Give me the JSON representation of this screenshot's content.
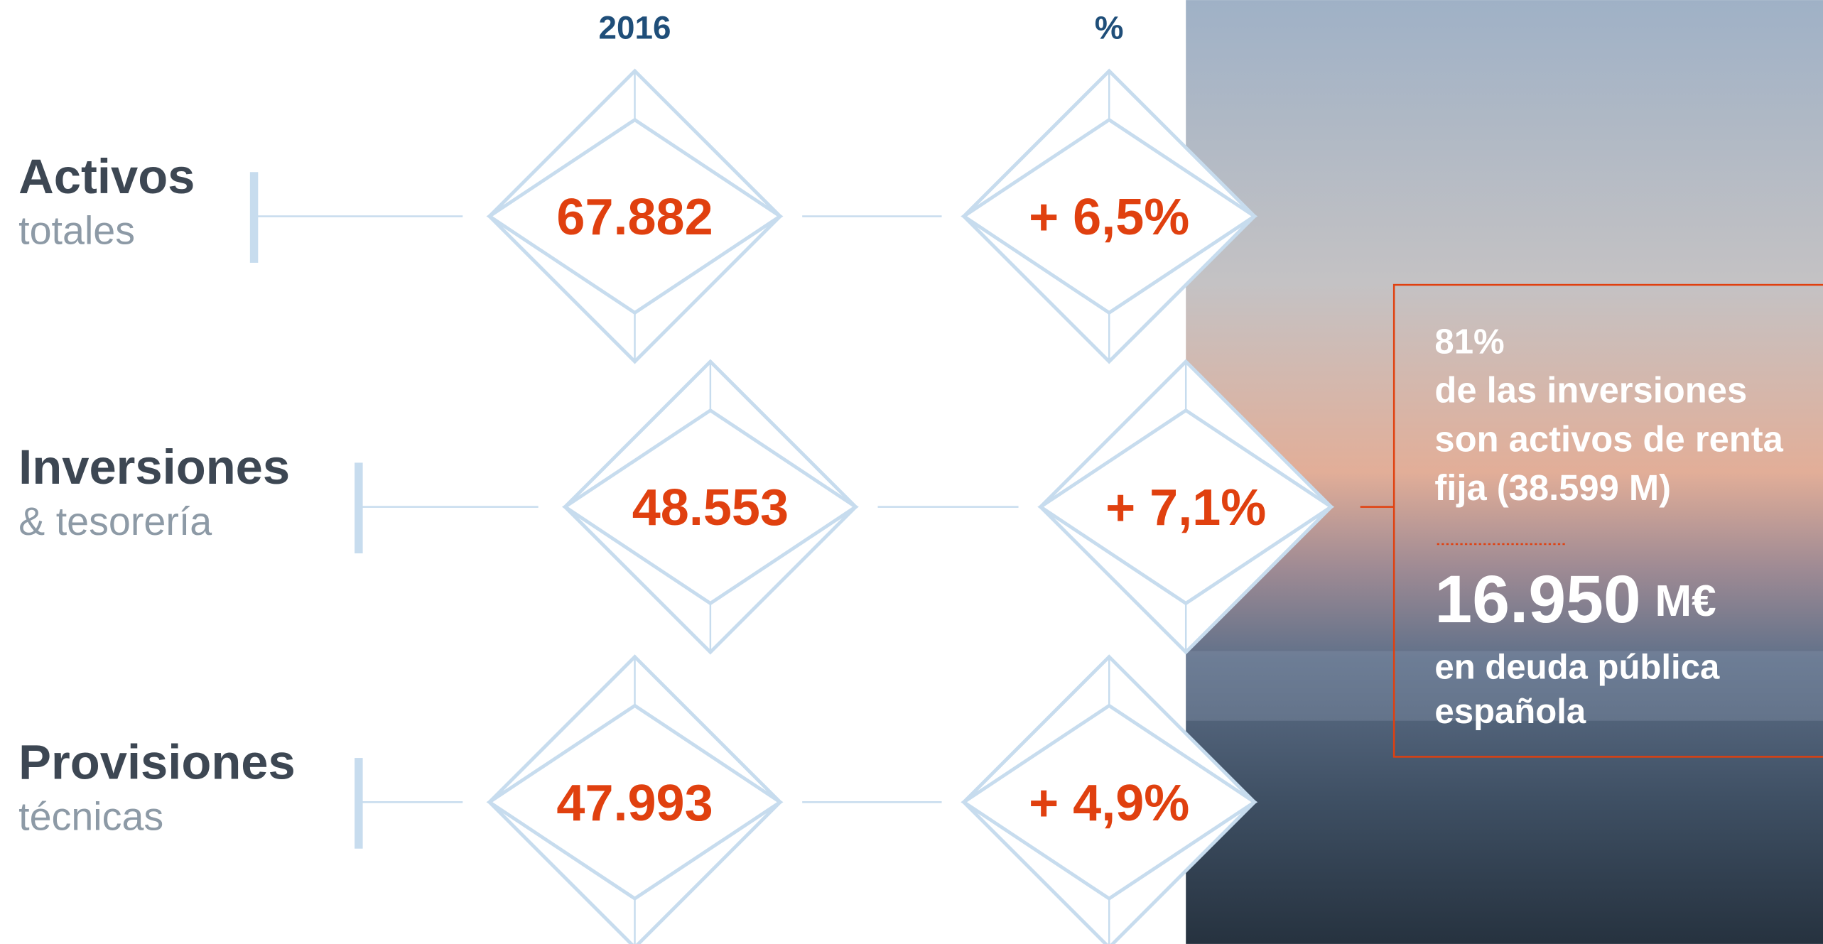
{
  "header": {
    "year": "2016",
    "change": "%"
  },
  "rows": [
    {
      "title": "Activos",
      "subtitle": "totales",
      "value": "67.882",
      "change": "+ 6,5%"
    },
    {
      "title": "Inversiones",
      "subtitle": "& tesorería",
      "value": "48.553",
      "change": "+ 7,1%"
    },
    {
      "title": "Provisiones",
      "subtitle": "técnicas",
      "value": "47.993",
      "change": "+ 4,9%"
    }
  ],
  "callout": {
    "share": "81%",
    "lines": [
      "de las inversiones",
      "son activos de renta",
      "fija (38.599 M)"
    ],
    "amount": "16.950",
    "unit": "M€",
    "footer": [
      "en deuda pública",
      "española"
    ]
  }
}
